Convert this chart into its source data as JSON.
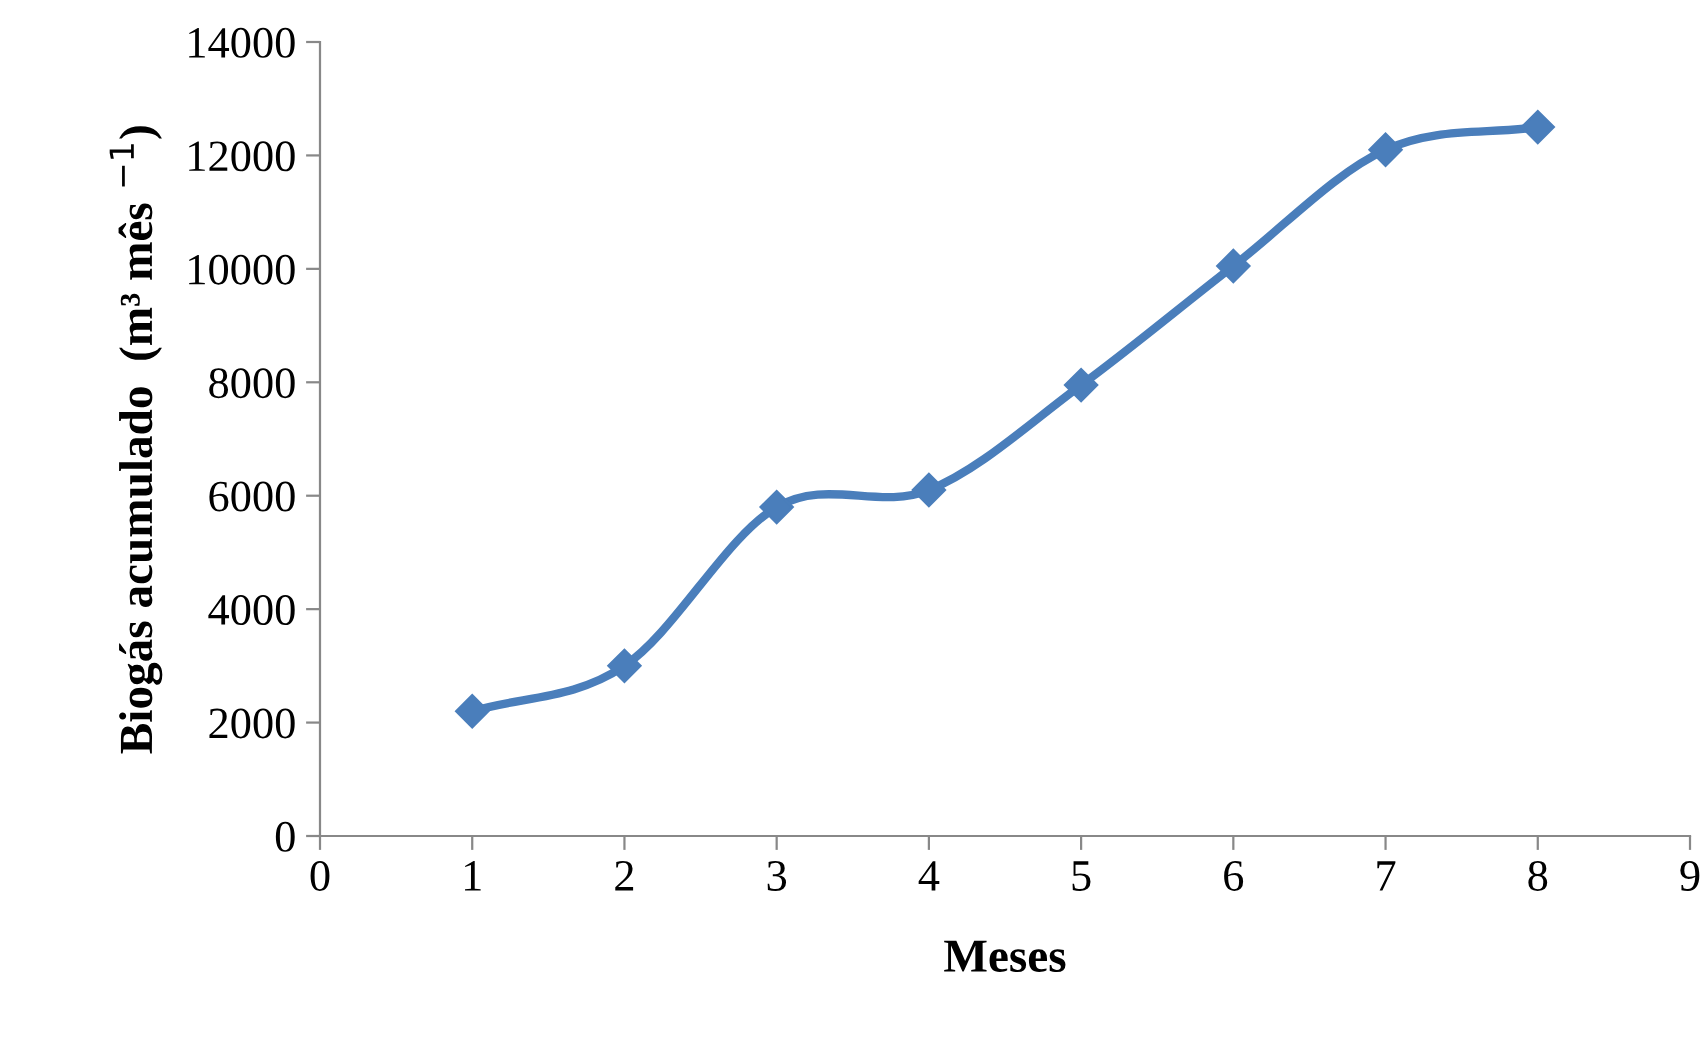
{
  "chart_data": {
    "type": "line",
    "xlabel": "Meses",
    "ylabel": "Biogás acumulado  (m³ mês $^{−1}$)",
    "x": [
      1,
      2,
      3,
      4,
      5,
      6,
      7,
      8
    ],
    "series": [
      {
        "color": "#4a7ebb",
        "values": [
          2200,
          3000,
          5800,
          6100,
          7950,
          10050,
          12100,
          12500
        ]
      }
    ],
    "xlim": [
      0,
      9
    ],
    "xticks": [
      0,
      1,
      2,
      3,
      4,
      5,
      6,
      7,
      8,
      9
    ],
    "ylim": [
      0,
      14000
    ],
    "yticks": [
      0,
      2000,
      4000,
      6000,
      8000,
      10000,
      12000,
      14000
    ],
    "marker": "diamond",
    "line_style": "solid",
    "grid": false,
    "legend": false
  }
}
